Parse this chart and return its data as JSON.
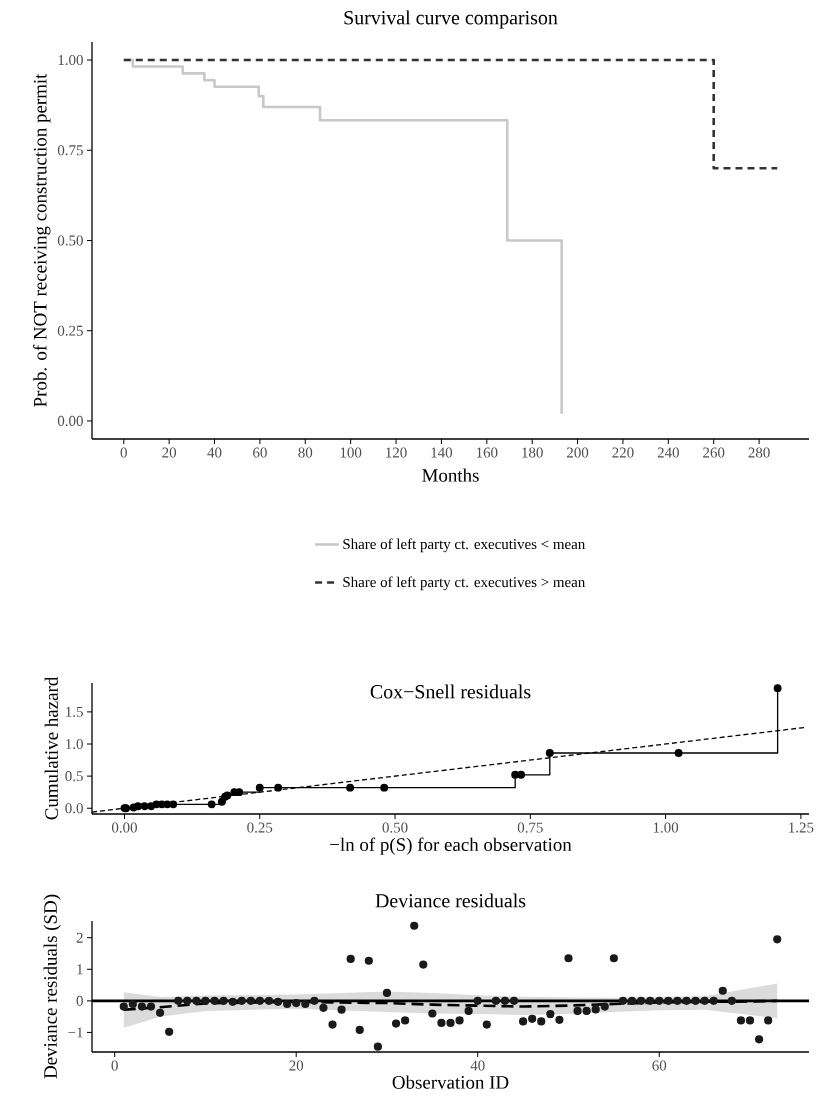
{
  "chart_data": [
    {
      "type": "step",
      "title": "Survival curve comparison",
      "xlabel": "Months",
      "ylabel": "Prob. of NOT receiving construction permit",
      "xlim": [
        -14,
        302
      ],
      "ylim": [
        -0.05,
        1.05
      ],
      "xticks": [
        0,
        20,
        40,
        60,
        80,
        100,
        120,
        140,
        160,
        180,
        200,
        220,
        240,
        260,
        280
      ],
      "yticks": [
        {
          "value": 0,
          "label": "0.00"
        },
        {
          "value": 0.25,
          "label": "0.25"
        },
        {
          "value": 0.5,
          "label": "0.50"
        },
        {
          "value": 0.75,
          "label": "0.75"
        },
        {
          "value": 1,
          "label": "1.00"
        }
      ],
      "legend": "bottom",
      "series": [
        {
          "name": "Share of left party ct. executives < mean",
          "color": "#c8c8c8",
          "line_style": "solid",
          "x": [
            0,
            4,
            26,
            35.5,
            40,
            59.5,
            61.5,
            86.5,
            169,
            193
          ],
          "values": [
            1,
            0.982,
            0.963,
            0.944,
            0.926,
            0.9,
            0.87,
            0.833,
            0.5,
            0.02
          ]
        },
        {
          "name": "Share of left party ct. executives > mean",
          "color": "#333333",
          "line_style": "dashed",
          "x": [
            0,
            260,
            288
          ],
          "values": [
            1,
            0.7,
            0.7
          ]
        }
      ]
    },
    {
      "type": "step",
      "title": "Cox−Snell residuals",
      "xlabel": "−ln of p(S) for each observation",
      "ylabel": "Cumulative hazard",
      "xlim": [
        -0.06,
        1.265
      ],
      "ylim": [
        -0.09,
        1.95
      ],
      "xticks": [
        {
          "value": 0,
          "label": "0.00"
        },
        {
          "value": 0.25,
          "label": "0.25"
        },
        {
          "value": 0.5,
          "label": "0.50"
        },
        {
          "value": 0.75,
          "label": "0.75"
        },
        {
          "value": 1,
          "label": "1.00"
        },
        {
          "value": 1.25,
          "label": "1.25"
        }
      ],
      "yticks": [
        {
          "value": 0,
          "label": "0.0"
        },
        {
          "value": 0.5,
          "label": "0.5"
        },
        {
          "value": 1,
          "label": "1.0"
        },
        {
          "value": 1.5,
          "label": "1.5"
        }
      ],
      "series": [
        {
          "type": "step",
          "color": "#000000",
          "marker": "circle",
          "line_style": "solid",
          "x": [
            0,
            0.003,
            0.017,
            0.025,
            0.037,
            0.049,
            0.059,
            0.069,
            0.079,
            0.09,
            0.161,
            0.18,
            0.186,
            0.19,
            0.203,
            0.212,
            0.25,
            0.284,
            0.417,
            0.48,
            0.722,
            0.733,
            0.786,
            1.024,
            1.207
          ],
          "values": [
            0,
            0,
            0.01,
            0.03,
            0.03,
            0.03,
            0.06,
            0.06,
            0.06,
            0.06,
            0.06,
            0.1,
            0.18,
            0.2,
            0.25,
            0.25,
            0.32,
            0.32,
            0.32,
            0.32,
            0.52,
            0.52,
            0.86,
            0.86,
            1.87
          ]
        },
        {
          "type": "line",
          "color": "#000000",
          "line_style": "dashed",
          "x": [
            -0.06,
            1.26
          ],
          "values": [
            -0.06,
            1.26
          ]
        }
      ]
    },
    {
      "type": "scatter",
      "title": "Deviance residuals",
      "xlabel": "Observation ID",
      "ylabel": "Deviance residuals (SD)",
      "xlim": [
        -2.5,
        76.5
      ],
      "ylim": [
        -1.62,
        2.53
      ],
      "xticks": [
        0,
        20,
        40,
        60
      ],
      "yticks": [
        {
          "value": -1,
          "label": "−1"
        },
        0,
        1,
        2
      ],
      "ref_lines": [
        {
          "axis": "y",
          "value": 0,
          "color": "#000000"
        }
      ],
      "series": [
        {
          "type": "scatter",
          "color": "#1a1a1a",
          "marker": "circle",
          "x": [
            1,
            2,
            3,
            4,
            5,
            6,
            7,
            8,
            9,
            10,
            11,
            12,
            13,
            14,
            15,
            16,
            17,
            18,
            19,
            20,
            21,
            22,
            23,
            24,
            25,
            26,
            27,
            28,
            29,
            30,
            31,
            32,
            33,
            34,
            35,
            36,
            37,
            38,
            39,
            40,
            41,
            42,
            43,
            44,
            45,
            46,
            47,
            48,
            49,
            50,
            51,
            52,
            53,
            54,
            55,
            56,
            57,
            58,
            59,
            60,
            61,
            62,
            63,
            64,
            65,
            66,
            67,
            68,
            69,
            70,
            71,
            72,
            73
          ],
          "values": [
            -0.18,
            -0.1,
            -0.18,
            -0.18,
            -0.38,
            -0.98,
            0,
            0,
            0,
            0,
            0,
            0,
            -0.03,
            0,
            0,
            0,
            0,
            -0.03,
            -0.1,
            -0.07,
            -0.1,
            0,
            -0.22,
            -0.75,
            -0.28,
            1.33,
            -0.92,
            1.27,
            -1.45,
            0.25,
            -0.72,
            -0.62,
            2.38,
            1.15,
            -0.4,
            -0.7,
            -0.7,
            -0.62,
            -0.32,
            0,
            -0.75,
            0,
            0,
            0,
            -0.65,
            -0.57,
            -0.65,
            -0.42,
            -0.6,
            1.35,
            -0.32,
            -0.32,
            -0.27,
            -0.18,
            1.35,
            0,
            0,
            0,
            0,
            0,
            0,
            0,
            0,
            0,
            0,
            0,
            0.32,
            0,
            -0.62,
            -0.62,
            -1.22,
            -0.62,
            1.95
          ]
        },
        {
          "type": "line",
          "color": "#000000",
          "line_style": "dashed",
          "x": [
            1,
            5,
            10,
            20,
            30,
            35,
            40,
            45,
            50,
            55,
            60,
            65,
            70,
            73
          ],
          "values": [
            -0.28,
            -0.2,
            -0.08,
            -0.03,
            -0.07,
            -0.12,
            -0.15,
            -0.18,
            -0.15,
            -0.1,
            -0.05,
            -0.03,
            -0.02,
            0
          ],
          "lower": [
            -0.85,
            -0.5,
            -0.32,
            -0.25,
            -0.35,
            -0.4,
            -0.42,
            -0.45,
            -0.42,
            -0.35,
            -0.3,
            -0.28,
            -0.45,
            -0.55
          ],
          "upper": [
            0.27,
            0.12,
            0.17,
            0.2,
            0.3,
            0.25,
            0.18,
            0.13,
            0.11,
            0.1,
            0.12,
            0.15,
            0.4,
            0.55
          ]
        }
      ]
    }
  ]
}
